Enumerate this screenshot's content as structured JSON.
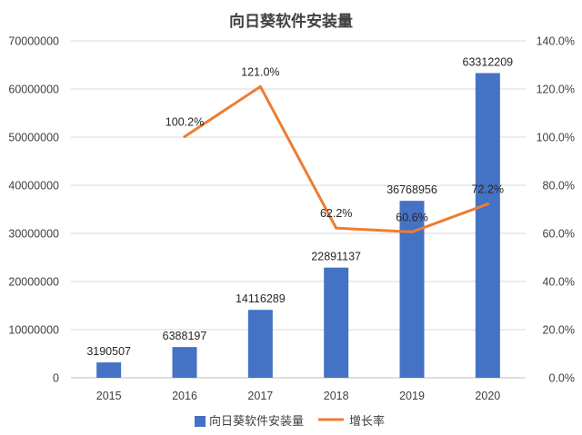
{
  "chart_data": {
    "type": "bar",
    "title": "向日葵软件安装量",
    "categories": [
      "2015",
      "2016",
      "2017",
      "2018",
      "2019",
      "2020"
    ],
    "series": [
      {
        "name": "向日葵软件安装量",
        "type": "bar",
        "axis": "left",
        "color": "#4472C4",
        "values": [
          3190507,
          6388197,
          14116289,
          22891137,
          36768956,
          63312209
        ],
        "labels": [
          "3190507",
          "6388197",
          "14116289",
          "22891137",
          "36768956",
          "63312209"
        ]
      },
      {
        "name": "增长率",
        "type": "line",
        "axis": "right",
        "color": "#ED7D31",
        "values": [
          null,
          100.2,
          121.0,
          62.2,
          60.6,
          72.2
        ],
        "labels": [
          "",
          "100.2%",
          "121.0%",
          "62.2%",
          "60.6%",
          "72.2%"
        ]
      }
    ],
    "y_left": {
      "ylim": [
        0,
        70000000
      ],
      "ticks": [
        "0",
        "10000000",
        "20000000",
        "30000000",
        "40000000",
        "50000000",
        "60000000",
        "70000000"
      ]
    },
    "y_right": {
      "ylim": [
        0,
        140
      ],
      "ticks": [
        "0.0%",
        "20.0%",
        "40.0%",
        "60.0%",
        "80.0%",
        "100.0%",
        "120.0%",
        "140.0%"
      ]
    },
    "grid": true,
    "legend": "bottom"
  }
}
